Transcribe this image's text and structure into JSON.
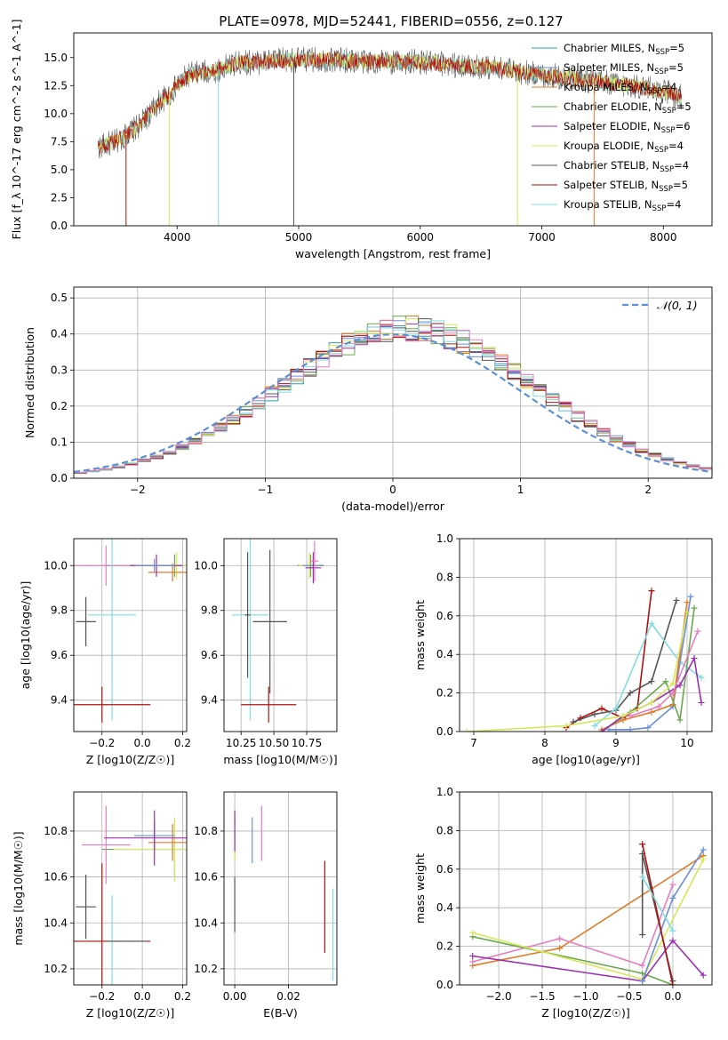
{
  "figure_title": "PLATE=0978, MJD=52441, FIBERID=0556, z=0.127",
  "colors": {
    "Chabrier MILES": "#2ca0a0",
    "Salpeter MILES": "#6a8fd8",
    "Kroupa MILES": "#e07b2a",
    "Chabrier ELODIE": "#6aa84f",
    "Salpeter ELODIE": "#9b30b0",
    "Kroupa ELODIE": "#d6e85a",
    "Chabrier STELIB": "#555555",
    "Salpeter STELIB": "#b01010",
    "Kroupa STELIB": "#7fdde0",
    "Pink": "#e87bc0",
    "Gauss": "#5b8fd8"
  },
  "chart_data": [
    {
      "type": "line",
      "id": "spectrum",
      "xlabel": "wavelength [Angstrom, rest frame]",
      "ylabel": "Flux [f_λ 10^-17 erg cm^-2 s^-1 A^-1]",
      "xlim": [
        3150,
        8400
      ],
      "ylim": [
        0,
        17.2
      ],
      "xticks": [
        4000,
        5000,
        6000,
        7000,
        8000
      ],
      "yticks": [
        0.0,
        2.5,
        5.0,
        7.5,
        10.0,
        12.5,
        15.0
      ],
      "ytick_labels": [
        "0.0",
        "2.5",
        "5.0",
        "7.5",
        "10.0",
        "12.5",
        "15.0"
      ],
      "grid": false,
      "legend_position": "right",
      "legend": [
        {
          "main": "Chabrier MILES, N",
          "sub": "SSP",
          "post": "=5",
          "color_key": "Chabrier MILES"
        },
        {
          "main": "Salpeter MILES, N",
          "sub": "SSP",
          "post": "=5",
          "color_key": "Salpeter MILES"
        },
        {
          "main": "Kroupa MILES, N",
          "sub": "SSP",
          "post": "=4",
          "color_key": "Kroupa MILES"
        },
        {
          "main": "Chabrier ELODIE, N",
          "sub": "SSP",
          "post": "=5",
          "color_key": "Chabrier ELODIE"
        },
        {
          "main": "Salpeter ELODIE, N",
          "sub": "SSP",
          "post": "=6",
          "color_key": "Salpeter ELODIE"
        },
        {
          "main": "Kroupa ELODIE, N",
          "sub": "SSP",
          "post": "=4",
          "color_key": "Kroupa ELODIE"
        },
        {
          "main": "Chabrier STELIB, N",
          "sub": "SSP",
          "post": "=4",
          "color_key": "Chabrier STELIB"
        },
        {
          "main": "Salpeter STELIB, N",
          "sub": "SSP",
          "post": "=5",
          "color_key": "Salpeter STELIB"
        },
        {
          "main": "Kroupa STELIB, N",
          "sub": "SSP",
          "post": "=4",
          "color_key": "Kroupa STELIB"
        }
      ],
      "continuum": {
        "x": [
          3350,
          3500,
          3700,
          3850,
          3950,
          4000,
          4100,
          4300,
          4500,
          4800,
          5000,
          5300,
          5600,
          6000,
          6300,
          6600,
          6900,
          7200,
          7500,
          7800,
          8000,
          8150
        ],
        "y": [
          7.0,
          7.5,
          9.0,
          11.0,
          11.8,
          12.5,
          13.5,
          13.8,
          14.5,
          14.7,
          14.8,
          14.8,
          14.6,
          14.6,
          14.3,
          14.1,
          13.6,
          13.2,
          12.8,
          12.4,
          12.0,
          11.5
        ]
      },
      "spectrum_noise": 0.9,
      "absorption_spikes": [
        {
          "x": 3580,
          "depth": 0.0,
          "color_key": "Salpeter STELIB"
        },
        {
          "x": 3935,
          "depth": 0.0,
          "color_key": "Kroupa ELODIE"
        },
        {
          "x": 4340,
          "depth": 0.0,
          "color_key": "Kroupa STELIB"
        },
        {
          "x": 4960,
          "depth": 0.0,
          "color_key": "Chabrier STELIB"
        },
        {
          "x": 6800,
          "depth": 0.0,
          "color_key": "Kroupa ELODIE"
        },
        {
          "x": 7430,
          "depth": 0.0,
          "color_key": "Kroupa MILES"
        }
      ]
    },
    {
      "type": "histogram",
      "id": "residuals",
      "xlabel": "(data-model)/error",
      "ylabel": "Normed distribution",
      "xlim": [
        -2.5,
        2.5
      ],
      "ylim": [
        0,
        0.53
      ],
      "xticks": [
        -2,
        -1,
        0,
        1,
        2
      ],
      "xtick_labels": [
        "−2",
        "−1",
        "0",
        "1",
        "2"
      ],
      "yticks": [
        0.0,
        0.1,
        0.2,
        0.3,
        0.4,
        0.5
      ],
      "ytick_labels": [
        "0.0",
        "0.1",
        "0.2",
        "0.3",
        "0.4",
        "0.5"
      ],
      "grid": true,
      "legend_position": "top-right",
      "legend_label": "𝒩(0, 1)",
      "bin_width": 0.1,
      "series_colors": [
        "Chabrier MILES",
        "Salpeter MILES",
        "Kroupa MILES",
        "Chabrier ELODIE",
        "Salpeter ELODIE",
        "Kroupa ELODIE",
        "Chabrier STELIB",
        "Salpeter STELIB",
        "Kroupa STELIB",
        "Pink"
      ],
      "gaussian": {
        "mean": 0,
        "sigma": 1
      }
    },
    {
      "type": "scatter",
      "id": "age_vs_Z",
      "xlabel": "Z [log10(Z/Z☉)]",
      "ylabel": "age  [log10(age/yr)]",
      "xlim": [
        -0.34,
        0.22
      ],
      "ylim": [
        9.26,
        10.12
      ],
      "xticks": [
        -0.2,
        0.0,
        0.2
      ],
      "xtick_labels": [
        "−0.2",
        "0.0",
        "0.2"
      ],
      "yticks": [
        9.4,
        9.6,
        9.8,
        10.0
      ],
      "ytick_labels": [
        "9.4",
        "9.6",
        "9.8",
        "10.0"
      ],
      "grid": true,
      "points": [
        {
          "x": 0.16,
          "y": 10.0,
          "xerr": 0.35,
          "yerr": 0.05,
          "color_key": "Chabrier ELODIE"
        },
        {
          "x": 0.17,
          "y": 10.0,
          "xerr": 0.3,
          "yerr": 0.06,
          "color_key": "Kroupa ELODIE"
        },
        {
          "x": 0.15,
          "y": 9.97,
          "xerr": 0.12,
          "yerr": 0.04,
          "color_key": "Kroupa MILES"
        },
        {
          "x": -0.18,
          "y": 10.0,
          "xerr": 0.2,
          "yerr": 0.09,
          "color_key": "Pink"
        },
        {
          "x": 0.07,
          "y": 10.0,
          "xerr": 0.13,
          "yerr": 0.05,
          "color_key": "Salpeter ELODIE"
        },
        {
          "x": 0.06,
          "y": 10.0,
          "xerr": 0.1,
          "yerr": 0.03,
          "color_key": "Salpeter MILES"
        },
        {
          "x": -0.28,
          "y": 9.75,
          "xerr": 0.05,
          "yerr": 0.11,
          "color_key": "Chabrier STELIB"
        },
        {
          "x": -0.15,
          "y": 9.78,
          "xerr": 0.12,
          "yerr": 0.47,
          "color_key": "Kroupa STELIB"
        },
        {
          "x": -0.2,
          "y": 9.38,
          "xerr": 0.24,
          "yerr": 0.08,
          "color_key": "Salpeter STELIB"
        }
      ]
    },
    {
      "type": "scatter",
      "id": "age_vs_mass",
      "xlabel": "mass [log10(M/M☉)]",
      "ylabel": "",
      "xlim": [
        10.12,
        10.98
      ],
      "ylim": [
        9.26,
        10.12
      ],
      "xticks": [
        10.25,
        10.5,
        10.75
      ],
      "xtick_labels": [
        "10.25",
        "10.50",
        "10.75"
      ],
      "yticks": [
        9.4,
        9.6,
        9.8,
        10.0
      ],
      "ytick_labels": [
        "9.4",
        "9.6",
        "9.8",
        "10.0"
      ],
      "grid": true,
      "points": [
        {
          "x": 10.78,
          "y": 10.0,
          "xerr": 0.1,
          "yerr": 0.05,
          "color_key": "Chabrier ELODIE"
        },
        {
          "x": 10.77,
          "y": 10.0,
          "xerr": 0.08,
          "yerr": 0.06,
          "color_key": "Kroupa ELODIE"
        },
        {
          "x": 10.8,
          "y": 10.0,
          "xerr": 0.08,
          "yerr": 0.04,
          "color_key": "Salpeter MILES"
        },
        {
          "x": 10.8,
          "y": 9.99,
          "xerr": 0.06,
          "yerr": 0.07,
          "color_key": "Salpeter ELODIE"
        },
        {
          "x": 10.81,
          "y": 10.02,
          "xerr": 0.03,
          "yerr": 0.09,
          "color_key": "Pink"
        },
        {
          "x": 10.47,
          "y": 9.75,
          "xerr": 0.13,
          "yerr": 0.32,
          "color_key": "Chabrier STELIB"
        },
        {
          "x": 10.32,
          "y": 9.78,
          "xerr": 0.14,
          "yerr": 0.47,
          "color_key": "Kroupa STELIB"
        },
        {
          "x": 10.46,
          "y": 9.38,
          "xerr": 0.21,
          "yerr": 0.08,
          "color_key": "Salpeter STELIB"
        },
        {
          "x": 10.3,
          "y": 9.78,
          "xerr": 0.02,
          "yerr": 0.28,
          "color_key": "Chabrier STELIB"
        }
      ]
    },
    {
      "type": "line",
      "id": "massweight_vs_age",
      "xlabel": "age  [log10(age/yr)]",
      "ylabel": "mass weight",
      "xlim": [
        6.8,
        10.35
      ],
      "ylim": [
        0,
        1.0
      ],
      "xticks": [
        7,
        8,
        9,
        10
      ],
      "xtick_labels": [
        "7",
        "8",
        "9",
        "10"
      ],
      "yticks": [
        0.0,
        0.2,
        0.4,
        0.6,
        0.8,
        1.0
      ],
      "ytick_labels": [
        "0.0",
        "0.2",
        "0.4",
        "0.6",
        "0.8",
        "1.0"
      ],
      "grid": true,
      "series": [
        {
          "color_key": "Salpeter STELIB",
          "x": [
            8.3,
            8.5,
            8.8,
            9.1,
            9.3,
            9.5
          ],
          "y": [
            0.02,
            0.07,
            0.12,
            0.07,
            0.12,
            0.73
          ]
        },
        {
          "color_key": "Chabrier STELIB",
          "x": [
            8.4,
            8.7,
            9.0,
            9.2,
            9.5,
            9.85
          ],
          "y": [
            0.05,
            0.09,
            0.11,
            0.2,
            0.26,
            0.68
          ]
        },
        {
          "color_key": "Kroupa STELIB",
          "x": [
            8.7,
            9.0,
            9.5,
            9.9,
            10.2
          ],
          "y": [
            0.03,
            0.12,
            0.56,
            0.36,
            0.28
          ]
        },
        {
          "color_key": "Salpeter MILES",
          "x": [
            8.9,
            9.2,
            9.45,
            9.8,
            10.05
          ],
          "y": [
            0.01,
            0.01,
            0.02,
            0.13,
            0.7
          ]
        },
        {
          "color_key": "Kroupa MILES",
          "x": [
            8.8,
            9.1,
            9.5,
            9.8,
            10.0
          ],
          "y": [
            0.01,
            0.06,
            0.1,
            0.14,
            0.67
          ]
        },
        {
          "color_key": "Chabrier ELODIE",
          "x": [
            8.8,
            9.2,
            9.7,
            9.9,
            10.1
          ],
          "y": [
            0.0,
            0.1,
            0.26,
            0.06,
            0.64
          ]
        },
        {
          "color_key": "Salpeter ELODIE",
          "x": [
            8.8,
            9.1,
            9.5,
            9.9,
            10.1,
            10.2
          ],
          "y": [
            0.0,
            0.08,
            0.15,
            0.24,
            0.38,
            0.15
          ]
        },
        {
          "color_key": "Kroupa ELODIE",
          "x": [
            6.9,
            8.3,
            9.1,
            9.5,
            9.8,
            10.0
          ],
          "y": [
            0.0,
            0.03,
            0.08,
            0.15,
            0.25,
            0.62
          ]
        },
        {
          "color_key": "Pink",
          "x": [
            9.2,
            9.6,
            9.8,
            10.15
          ],
          "y": [
            0.08,
            0.13,
            0.2,
            0.52
          ]
        }
      ]
    },
    {
      "type": "scatter",
      "id": "mass_vs_Z",
      "xlabel": "Z [log10(Z/Z☉)]",
      "ylabel": "mass [log10(M/M☉)]",
      "xlim": [
        -0.34,
        0.22
      ],
      "ylim": [
        10.13,
        10.97
      ],
      "xticks": [
        -0.2,
        0.0,
        0.2
      ],
      "xtick_labels": [
        "−0.2",
        "0.0",
        "0.2"
      ],
      "yticks": [
        10.2,
        10.4,
        10.6,
        10.8
      ],
      "ytick_labels": [
        "10.2",
        "10.4",
        "10.6",
        "10.8"
      ],
      "grid": true,
      "points": [
        {
          "x": 0.16,
          "y": 10.72,
          "xerr": 0.36,
          "yerr": 0.12,
          "color_key": "Chabrier ELODIE"
        },
        {
          "x": 0.16,
          "y": 10.72,
          "xerr": 0.3,
          "yerr": 0.14,
          "color_key": "Kroupa ELODIE"
        },
        {
          "x": 0.15,
          "y": 10.75,
          "xerr": 0.12,
          "yerr": 0.08,
          "color_key": "Kroupa MILES"
        },
        {
          "x": -0.18,
          "y": 10.74,
          "xerr": 0.12,
          "yerr": 0.17,
          "color_key": "Pink"
        },
        {
          "x": 0.06,
          "y": 10.78,
          "xerr": 0.1,
          "yerr": 0.06,
          "color_key": "Salpeter MILES"
        },
        {
          "x": 0.06,
          "y": 10.77,
          "xerr": 0.25,
          "yerr": 0.12,
          "color_key": "Salpeter ELODIE"
        },
        {
          "x": -0.28,
          "y": 10.47,
          "xerr": 0.05,
          "yerr": 0.14,
          "color_key": "Chabrier STELIB"
        },
        {
          "x": -0.15,
          "y": 10.32,
          "xerr": 0.12,
          "yerr": 0.2,
          "color_key": "Kroupa STELIB"
        },
        {
          "x": -0.2,
          "y": 10.32,
          "xerr": 0.24,
          "yerr": 0.34,
          "color_key": "Salpeter STELIB"
        },
        {
          "x": -0.08,
          "y": 10.32,
          "xerr": 0.1,
          "yerr": 0.0,
          "color_key": "Chabrier STELIB"
        }
      ]
    },
    {
      "type": "scatter",
      "id": "mass_vs_ebv",
      "xlabel": "E(B-V)",
      "ylabel": "",
      "xlim": [
        -0.004,
        0.038
      ],
      "ylim": [
        10.13,
        10.97
      ],
      "xticks": [
        0.0,
        0.02
      ],
      "xtick_labels": [
        "0.00",
        "0.02"
      ],
      "yticks": [
        10.2,
        10.4,
        10.6,
        10.8
      ],
      "ytick_labels": [
        "10.2",
        "10.4",
        "10.6",
        "10.8"
      ],
      "grid": true,
      "points": [
        {
          "x": 0.0,
          "y": 10.78,
          "xerr": 0.0,
          "yerr": 0.1,
          "color_key": "Chabrier ELODIE"
        },
        {
          "x": 0.0,
          "y": 10.75,
          "xerr": 0.0,
          "yerr": 0.08,
          "color_key": "Kroupa ELODIE"
        },
        {
          "x": 0.0,
          "y": 10.8,
          "xerr": 0.0,
          "yerr": 0.09,
          "color_key": "Salpeter ELODIE"
        },
        {
          "x": 0.0,
          "y": 10.48,
          "xerr": 0.0,
          "yerr": 0.12,
          "color_key": "Chabrier STELIB"
        },
        {
          "x": 0.0065,
          "y": 10.76,
          "xerr": 0.0,
          "yerr": 0.1,
          "color_key": "Salpeter MILES"
        },
        {
          "x": 0.01,
          "y": 10.79,
          "xerr": 0.0,
          "yerr": 0.12,
          "color_key": "Pink"
        },
        {
          "x": 0.0335,
          "y": 10.47,
          "xerr": 0.0,
          "yerr": 0.2,
          "color_key": "Salpeter STELIB"
        },
        {
          "x": 0.0365,
          "y": 10.35,
          "xerr": 0.0,
          "yerr": 0.2,
          "color_key": "Kroupa STELIB"
        }
      ]
    },
    {
      "type": "line",
      "id": "massweight_vs_Z",
      "xlabel": "Z [log10(Z/Z☉)]",
      "ylabel": "mass weight",
      "xlim": [
        -2.45,
        0.45
      ],
      "ylim": [
        0,
        1.0
      ],
      "xticks": [
        -2.0,
        -1.5,
        -1.0,
        -0.5,
        0.0
      ],
      "xtick_labels": [
        "−2.0",
        "−1.5",
        "−1.0",
        "−0.5",
        "0.0"
      ],
      "yticks": [
        0.0,
        0.2,
        0.4,
        0.6,
        0.8,
        1.0
      ],
      "ytick_labels": [
        "0.0",
        "0.2",
        "0.4",
        "0.6",
        "0.8",
        "1.0"
      ],
      "grid": true,
      "series": [
        {
          "color_key": "Kroupa MILES",
          "x": [
            -2.3,
            -1.3,
            0.35
          ],
          "y": [
            0.1,
            0.19,
            0.67
          ]
        },
        {
          "color_key": "Pink",
          "x": [
            -2.3,
            -1.3,
            -0.35,
            0.0
          ],
          "y": [
            0.12,
            0.24,
            0.1,
            0.52
          ]
        },
        {
          "color_key": "Chabrier ELODIE",
          "x": [
            -2.3,
            -0.35,
            0.0
          ],
          "y": [
            0.25,
            0.06,
            0.0
          ]
        },
        {
          "color_key": "Kroupa ELODIE",
          "x": [
            -2.3,
            -0.35,
            0.35
          ],
          "y": [
            0.27,
            0.03,
            0.65
          ]
        },
        {
          "color_key": "Salpeter ELODIE",
          "x": [
            -2.3,
            -0.35,
            0.0,
            0.35
          ],
          "y": [
            0.15,
            0.02,
            0.23,
            0.05
          ]
        },
        {
          "color_key": "Salpeter MILES",
          "x": [
            -0.35,
            0.0,
            0.35
          ],
          "y": [
            0.02,
            0.45,
            0.7
          ]
        },
        {
          "color_key": "Chabrier STELIB",
          "x": [
            -0.35,
            -0.35,
            0.0
          ],
          "y": [
            0.26,
            0.68,
            0.02
          ]
        },
        {
          "color_key": "Salpeter STELIB",
          "x": [
            -0.35,
            0.0
          ],
          "y": [
            0.73,
            0.0
          ]
        },
        {
          "color_key": "Kroupa STELIB",
          "x": [
            -0.35,
            0.0
          ],
          "y": [
            0.56,
            0.28
          ]
        }
      ]
    }
  ]
}
